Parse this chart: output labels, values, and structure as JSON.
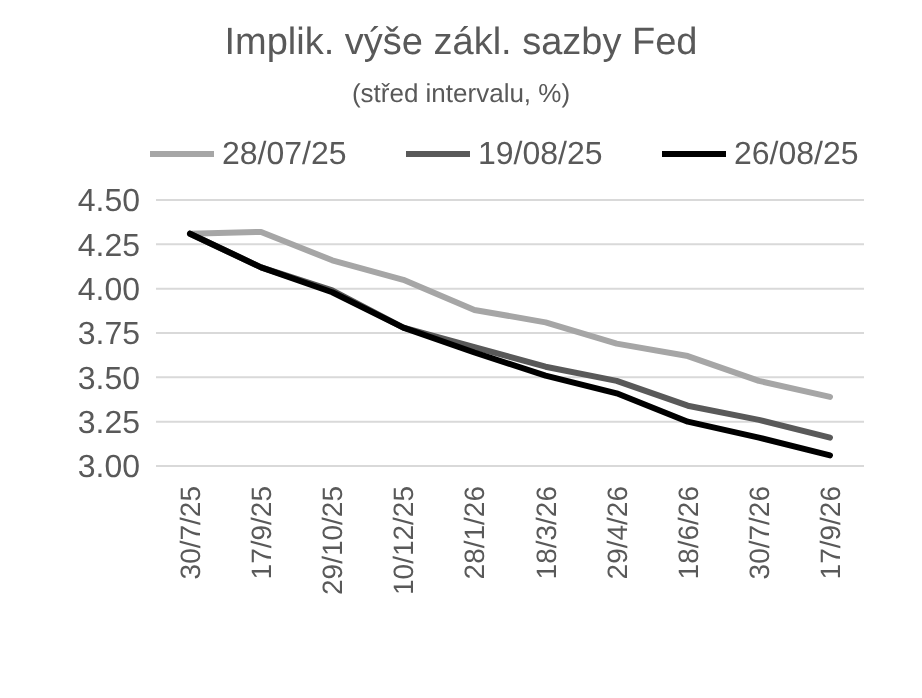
{
  "chart_data": {
    "type": "line",
    "title": "Implik. výše zákl. sazby Fed",
    "subtitle": "(střed intervalu, %)",
    "categories": [
      "30/7/25",
      "17/9/25",
      "29/10/25",
      "10/12/25",
      "28/1/26",
      "18/3/26",
      "29/4/26",
      "18/6/26",
      "30/7/26",
      "17/9/26"
    ],
    "series": [
      {
        "name": "28/07/25",
        "color": "#a6a6a6",
        "values": [
          4.31,
          4.32,
          4.16,
          4.05,
          3.88,
          3.81,
          3.69,
          3.62,
          3.48,
          3.39
        ]
      },
      {
        "name": "19/08/25",
        "color": "#595959",
        "values": [
          4.31,
          4.12,
          3.99,
          3.78,
          3.67,
          3.56,
          3.48,
          3.34,
          3.26,
          3.16
        ]
      },
      {
        "name": "26/08/25",
        "color": "#000000",
        "values": [
          4.31,
          4.12,
          3.98,
          3.78,
          3.64,
          3.51,
          3.41,
          3.25,
          3.16,
          3.06
        ]
      }
    ],
    "ylim": [
      3,
      4.5
    ],
    "yticks": [
      {
        "value": 3,
        "label": "3.00"
      },
      {
        "value": 3.25,
        "label": "3.25"
      },
      {
        "value": 3.5,
        "label": "3.50"
      },
      {
        "value": 3.75,
        "label": "3.75"
      },
      {
        "value": 4,
        "label": "4.00"
      },
      {
        "value": 4.25,
        "label": "4.25"
      },
      {
        "value": 4.5,
        "label": "4.50"
      }
    ],
    "grid": "y",
    "legend": "top",
    "marker": "none",
    "line_style": "solid"
  }
}
